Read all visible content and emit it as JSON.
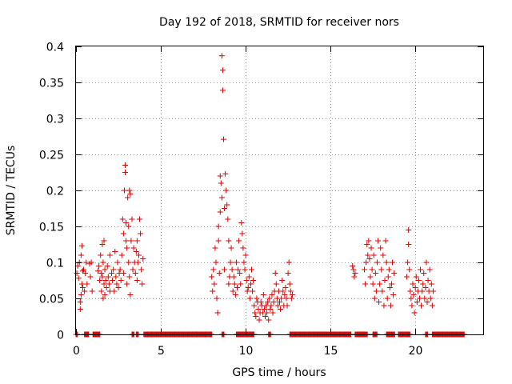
{
  "chart_data": {
    "type": "scatter",
    "title": "Day 192 of 2018, SRMTID for receiver nors",
    "xlabel": "GPS time / hours",
    "ylabel": "SRMTID / TECUs",
    "xlim": [
      0,
      24
    ],
    "ylim": [
      0,
      0.4
    ],
    "x_ticks": [
      0,
      5,
      10,
      15,
      20
    ],
    "y_ticks": [
      0,
      0.05,
      0.1,
      0.15,
      0.2,
      0.25,
      0.3,
      0.35,
      0.4
    ],
    "x_tick_labels": [
      "0",
      "5",
      "10",
      "15",
      "20"
    ],
    "y_tick_labels": [
      "0",
      "0.05",
      "0.1",
      "0.15",
      "0.2",
      "0.25",
      "0.3",
      "0.35",
      "0.4"
    ],
    "grid": true,
    "marker": "+",
    "color": "#e00000",
    "series": [
      {
        "name": "SRMTID",
        "points": [
          [
            0.05,
            0.085
          ],
          [
            0.1,
            0.095
          ],
          [
            0.15,
            0.078
          ],
          [
            0.2,
            0.1
          ],
          [
            0.25,
            0.045
          ],
          [
            0.25,
            0.035
          ],
          [
            0.3,
            0.055
          ],
          [
            0.3,
            0.11
          ],
          [
            0.35,
            0.123
          ],
          [
            0.35,
            0.07
          ],
          [
            0.4,
            0.088
          ],
          [
            0.4,
            0.065
          ],
          [
            0.45,
            0.09
          ],
          [
            0.5,
            0.06
          ],
          [
            0.55,
            0.085
          ],
          [
            0.6,
            0.1
          ],
          [
            0.65,
            0.07
          ],
          [
            0.8,
            0.098
          ],
          [
            0.85,
            0.08
          ],
          [
            0.9,
            0.1
          ],
          [
            0.95,
            0.06
          ],
          [
            1.3,
            0.088
          ],
          [
            1.35,
            0.095
          ],
          [
            1.4,
            0.075
          ],
          [
            1.45,
            0.11
          ],
          [
            1.5,
            0.06
          ],
          [
            1.5,
            0.085
          ],
          [
            1.55,
            0.08
          ],
          [
            1.55,
            0.125
          ],
          [
            1.6,
            0.1
          ],
          [
            1.6,
            0.05
          ],
          [
            1.65,
            0.07
          ],
          [
            1.65,
            0.13
          ],
          [
            1.7,
            0.09
          ],
          [
            1.7,
            0.055
          ],
          [
            1.75,
            0.075
          ],
          [
            1.8,
            0.065
          ],
          [
            1.85,
            0.095
          ],
          [
            1.9,
            0.08
          ],
          [
            1.95,
            0.07
          ],
          [
            2.0,
            0.11
          ],
          [
            2.0,
            0.06
          ],
          [
            2.1,
            0.085
          ],
          [
            2.15,
            0.075
          ],
          [
            2.2,
            0.09
          ],
          [
            2.25,
            0.06
          ],
          [
            2.3,
            0.115
          ],
          [
            2.35,
            0.08
          ],
          [
            2.4,
            0.07
          ],
          [
            2.45,
            0.1
          ],
          [
            2.5,
            0.065
          ],
          [
            2.55,
            0.085
          ],
          [
            2.6,
            0.09
          ],
          [
            2.65,
            0.075
          ],
          [
            2.7,
            0.11
          ],
          [
            2.75,
            0.16
          ],
          [
            2.8,
            0.14
          ],
          [
            2.8,
            0.085
          ],
          [
            2.85,
            0.2
          ],
          [
            2.9,
            0.235
          ],
          [
            2.9,
            0.225
          ],
          [
            2.95,
            0.155
          ],
          [
            2.95,
            0.13
          ],
          [
            3.0,
            0.12
          ],
          [
            3.0,
            0.07
          ],
          [
            3.05,
            0.19
          ],
          [
            3.1,
            0.15
          ],
          [
            3.1,
            0.1
          ],
          [
            3.15,
            0.08
          ],
          [
            3.15,
            0.2
          ],
          [
            3.2,
            0.195
          ],
          [
            3.2,
            0.055
          ],
          [
            3.25,
            0.13
          ],
          [
            3.3,
            0.16
          ],
          [
            3.35,
            0.09
          ],
          [
            3.4,
            0.12
          ],
          [
            3.45,
            0.1
          ],
          [
            3.5,
            0.085
          ],
          [
            3.55,
            0.115
          ],
          [
            3.6,
            0.13
          ],
          [
            3.6,
            0.075
          ],
          [
            3.65,
            0.1
          ],
          [
            3.7,
            0.11
          ],
          [
            3.75,
            0.16
          ],
          [
            3.8,
            0.14
          ],
          [
            3.85,
            0.09
          ],
          [
            3.9,
            0.07
          ],
          [
            3.95,
            0.105
          ],
          [
            8.0,
            0.08
          ],
          [
            8.05,
            0.06
          ],
          [
            8.1,
            0.09
          ],
          [
            8.15,
            0.07
          ],
          [
            8.2,
            0.12
          ],
          [
            8.25,
            0.1
          ],
          [
            8.3,
            0.05
          ],
          [
            8.35,
            0.03
          ],
          [
            8.4,
            0.13
          ],
          [
            8.4,
            0.15
          ],
          [
            8.45,
            0.085
          ],
          [
            8.5,
            0.17
          ],
          [
            8.5,
            0.22
          ],
          [
            8.55,
            0.21
          ],
          [
            8.6,
            0.19
          ],
          [
            8.6,
            0.387
          ],
          [
            8.65,
            0.367
          ],
          [
            8.65,
            0.339
          ],
          [
            8.7,
            0.271
          ],
          [
            8.75,
            0.175
          ],
          [
            8.75,
            0.09
          ],
          [
            8.8,
            0.223
          ],
          [
            8.85,
            0.2
          ],
          [
            8.9,
            0.18
          ],
          [
            8.95,
            0.16
          ],
          [
            9.0,
            0.13
          ],
          [
            9.0,
            0.07
          ],
          [
            9.05,
            0.08
          ],
          [
            9.1,
            0.1
          ],
          [
            9.15,
            0.12
          ],
          [
            9.2,
            0.09
          ],
          [
            9.25,
            0.06
          ],
          [
            9.3,
            0.08
          ],
          [
            9.35,
            0.07
          ],
          [
            9.4,
            0.055
          ],
          [
            9.45,
            0.1
          ],
          [
            9.5,
            0.065
          ],
          [
            9.55,
            0.09
          ],
          [
            9.6,
            0.13
          ],
          [
            9.65,
            0.085
          ],
          [
            9.7,
            0.07
          ],
          [
            9.75,
            0.155
          ],
          [
            9.8,
            0.14
          ],
          [
            9.85,
            0.12
          ],
          [
            9.9,
            0.1
          ],
          [
            9.95,
            0.09
          ],
          [
            10.0,
            0.11
          ],
          [
            10.05,
            0.075
          ],
          [
            10.1,
            0.06
          ],
          [
            10.15,
            0.065
          ],
          [
            10.2,
            0.08
          ],
          [
            10.25,
            0.05
          ],
          [
            10.3,
            0.07
          ],
          [
            10.35,
            0.09
          ],
          [
            10.4,
            0.06
          ],
          [
            10.45,
            0.075
          ],
          [
            10.5,
            0.04
          ],
          [
            10.55,
            0.03
          ],
          [
            10.6,
            0.025
          ],
          [
            10.65,
            0.05
          ],
          [
            10.7,
            0.045
          ],
          [
            10.75,
            0.035
          ],
          [
            10.8,
            0.02
          ],
          [
            10.85,
            0.03
          ],
          [
            10.9,
            0.045
          ],
          [
            10.95,
            0.04
          ],
          [
            11.0,
            0.03
          ],
          [
            11.05,
            0.055
          ],
          [
            11.1,
            0.035
          ],
          [
            11.15,
            0.025
          ],
          [
            11.2,
            0.04
          ],
          [
            11.25,
            0.03
          ],
          [
            11.3,
            0.045
          ],
          [
            11.35,
            0.02
          ],
          [
            11.4,
            0.05
          ],
          [
            11.45,
            0.035
          ],
          [
            11.5,
            0.04
          ],
          [
            11.55,
            0.055
          ],
          [
            11.6,
            0.03
          ],
          [
            11.65,
            0.045
          ],
          [
            11.7,
            0.06
          ],
          [
            11.75,
            0.085
          ],
          [
            11.8,
            0.07
          ],
          [
            11.85,
            0.05
          ],
          [
            11.9,
            0.04
          ],
          [
            11.95,
            0.06
          ],
          [
            12.0,
            0.045
          ],
          [
            12.05,
            0.035
          ],
          [
            12.1,
            0.05
          ],
          [
            12.15,
            0.075
          ],
          [
            12.2,
            0.06
          ],
          [
            12.25,
            0.04
          ],
          [
            12.3,
            0.055
          ],
          [
            12.35,
            0.065
          ],
          [
            12.4,
            0.05
          ],
          [
            12.45,
            0.04
          ],
          [
            12.5,
            0.085
          ],
          [
            12.55,
            0.1
          ],
          [
            12.6,
            0.07
          ],
          [
            12.65,
            0.06
          ],
          [
            12.7,
            0.05
          ],
          [
            12.75,
            0.055
          ],
          [
            16.3,
            0.095
          ],
          [
            16.35,
            0.09
          ],
          [
            16.4,
            0.08
          ],
          [
            16.45,
            0.085
          ],
          [
            17.0,
            0.09
          ],
          [
            17.05,
            0.07
          ],
          [
            17.1,
            0.1
          ],
          [
            17.15,
            0.125
          ],
          [
            17.2,
            0.11
          ],
          [
            17.25,
            0.13
          ],
          [
            17.3,
            0.105
          ],
          [
            17.35,
            0.08
          ],
          [
            17.4,
            0.12
          ],
          [
            17.45,
            0.09
          ],
          [
            17.5,
            0.07
          ],
          [
            17.55,
            0.11
          ],
          [
            17.6,
            0.05
          ],
          [
            17.65,
            0.085
          ],
          [
            17.7,
            0.06
          ],
          [
            17.75,
            0.1
          ],
          [
            17.8,
            0.13
          ],
          [
            17.85,
            0.045
          ],
          [
            17.9,
            0.07
          ],
          [
            17.95,
            0.12
          ],
          [
            18.0,
            0.09
          ],
          [
            18.05,
            0.06
          ],
          [
            18.1,
            0.11
          ],
          [
            18.15,
            0.04
          ],
          [
            18.2,
            0.075
          ],
          [
            18.25,
            0.13
          ],
          [
            18.3,
            0.1
          ],
          [
            18.35,
            0.05
          ],
          [
            18.4,
            0.08
          ],
          [
            18.45,
            0.09
          ],
          [
            18.5,
            0.065
          ],
          [
            18.55,
            0.04
          ],
          [
            18.6,
            0.07
          ],
          [
            18.65,
            0.1
          ],
          [
            18.7,
            0.055
          ],
          [
            18.75,
            0.085
          ],
          [
            19.5,
            0.08
          ],
          [
            19.55,
            0.1
          ],
          [
            19.6,
            0.145
          ],
          [
            19.6,
            0.125
          ],
          [
            19.65,
            0.09
          ],
          [
            19.7,
            0.06
          ],
          [
            19.75,
            0.05
          ],
          [
            19.8,
            0.04
          ],
          [
            19.85,
            0.07
          ],
          [
            19.9,
            0.055
          ],
          [
            19.95,
            0.03
          ],
          [
            20.0,
            0.065
          ],
          [
            20.05,
            0.08
          ],
          [
            20.1,
            0.045
          ],
          [
            20.15,
            0.06
          ],
          [
            20.2,
            0.075
          ],
          [
            20.25,
            0.05
          ],
          [
            20.3,
            0.09
          ],
          [
            20.35,
            0.04
          ],
          [
            20.4,
            0.06
          ],
          [
            20.45,
            0.07
          ],
          [
            20.5,
            0.085
          ],
          [
            20.55,
            0.05
          ],
          [
            20.6,
            0.065
          ],
          [
            20.65,
            0.1
          ],
          [
            20.7,
            0.045
          ],
          [
            20.75,
            0.075
          ],
          [
            20.8,
            0.06
          ],
          [
            20.85,
            0.09
          ],
          [
            20.9,
            0.05
          ],
          [
            20.95,
            0.07
          ],
          [
            21.0,
            0.04
          ],
          [
            21.05,
            0.06
          ]
        ]
      }
    ],
    "zero_bands": [
      [
        0.0,
        0.1
      ],
      [
        0.5,
        0.75
      ],
      [
        1.0,
        1.4
      ],
      [
        3.3,
        3.45
      ],
      [
        3.55,
        3.7
      ],
      [
        4.0,
        8.0
      ],
      [
        8.6,
        8.75
      ],
      [
        9.45,
        10.5
      ],
      [
        11.35,
        11.5
      ],
      [
        12.6,
        16.2
      ],
      [
        16.45,
        17.2
      ],
      [
        17.5,
        17.75
      ],
      [
        18.3,
        18.8
      ],
      [
        19.0,
        19.7
      ],
      [
        20.6,
        20.75
      ],
      [
        21.0,
        22.9
      ]
    ]
  }
}
